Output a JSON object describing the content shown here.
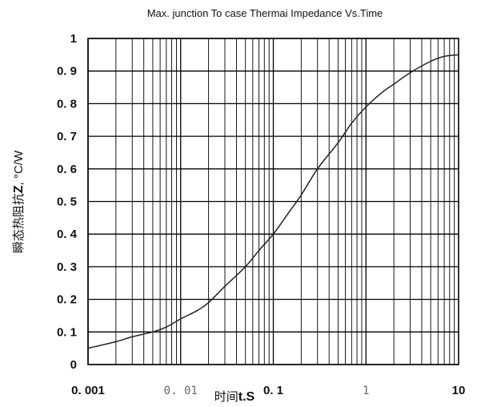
{
  "chart_data": {
    "type": "line",
    "title": "Max. junction To case Thermai Impedance Vs.Time",
    "ylabel": "瞬态热阻抗Z, °C/W",
    "ylabel_prefix": "瞬态热阻抗",
    "ylabel_symbol": "Z",
    "ylabel_unit": ", °C/W",
    "xlabel_prefix": "时间",
    "xlabel_symbol": "t.S",
    "x_scale": "log",
    "xlim": [
      0.001,
      10
    ],
    "ylim": [
      0,
      1
    ],
    "grid": true,
    "x_ticks": [
      {
        "value": 0.001,
        "label": "0. 001",
        "style": "bold"
      },
      {
        "value": 0.01,
        "label": "0. 01",
        "style": "light"
      },
      {
        "value": 0.1,
        "label": "0. 1",
        "style": "bold"
      },
      {
        "value": 1,
        "label": "1",
        "style": "light"
      },
      {
        "value": 10,
        "label": "10",
        "style": "bold"
      }
    ],
    "y_ticks": [
      {
        "value": 0,
        "label": "0"
      },
      {
        "value": 0.1,
        "label": "0. 1"
      },
      {
        "value": 0.2,
        "label": "0. 2"
      },
      {
        "value": 0.3,
        "label": "0. 3"
      },
      {
        "value": 0.4,
        "label": "0. 4"
      },
      {
        "value": 0.5,
        "label": "0. 5"
      },
      {
        "value": 0.6,
        "label": "0. 6"
      },
      {
        "value": 0.7,
        "label": "0. 7"
      },
      {
        "value": 0.8,
        "label": "0. 8"
      },
      {
        "value": 0.9,
        "label": "0. 9"
      },
      {
        "value": 1,
        "label": "1"
      }
    ],
    "series": [
      {
        "color": "#222222",
        "x": [
          0.001,
          0.002,
          0.003,
          0.005,
          0.007,
          0.01,
          0.015,
          0.02,
          0.03,
          0.05,
          0.07,
          0.1,
          0.15,
          0.2,
          0.3,
          0.5,
          0.7,
          1,
          1.5,
          2,
          3,
          5,
          7,
          10
        ],
        "y": [
          0.05,
          0.07,
          0.085,
          0.1,
          0.115,
          0.14,
          0.165,
          0.19,
          0.24,
          0.3,
          0.35,
          0.4,
          0.47,
          0.52,
          0.6,
          0.68,
          0.74,
          0.79,
          0.835,
          0.86,
          0.895,
          0.93,
          0.945,
          0.95
        ]
      }
    ]
  }
}
